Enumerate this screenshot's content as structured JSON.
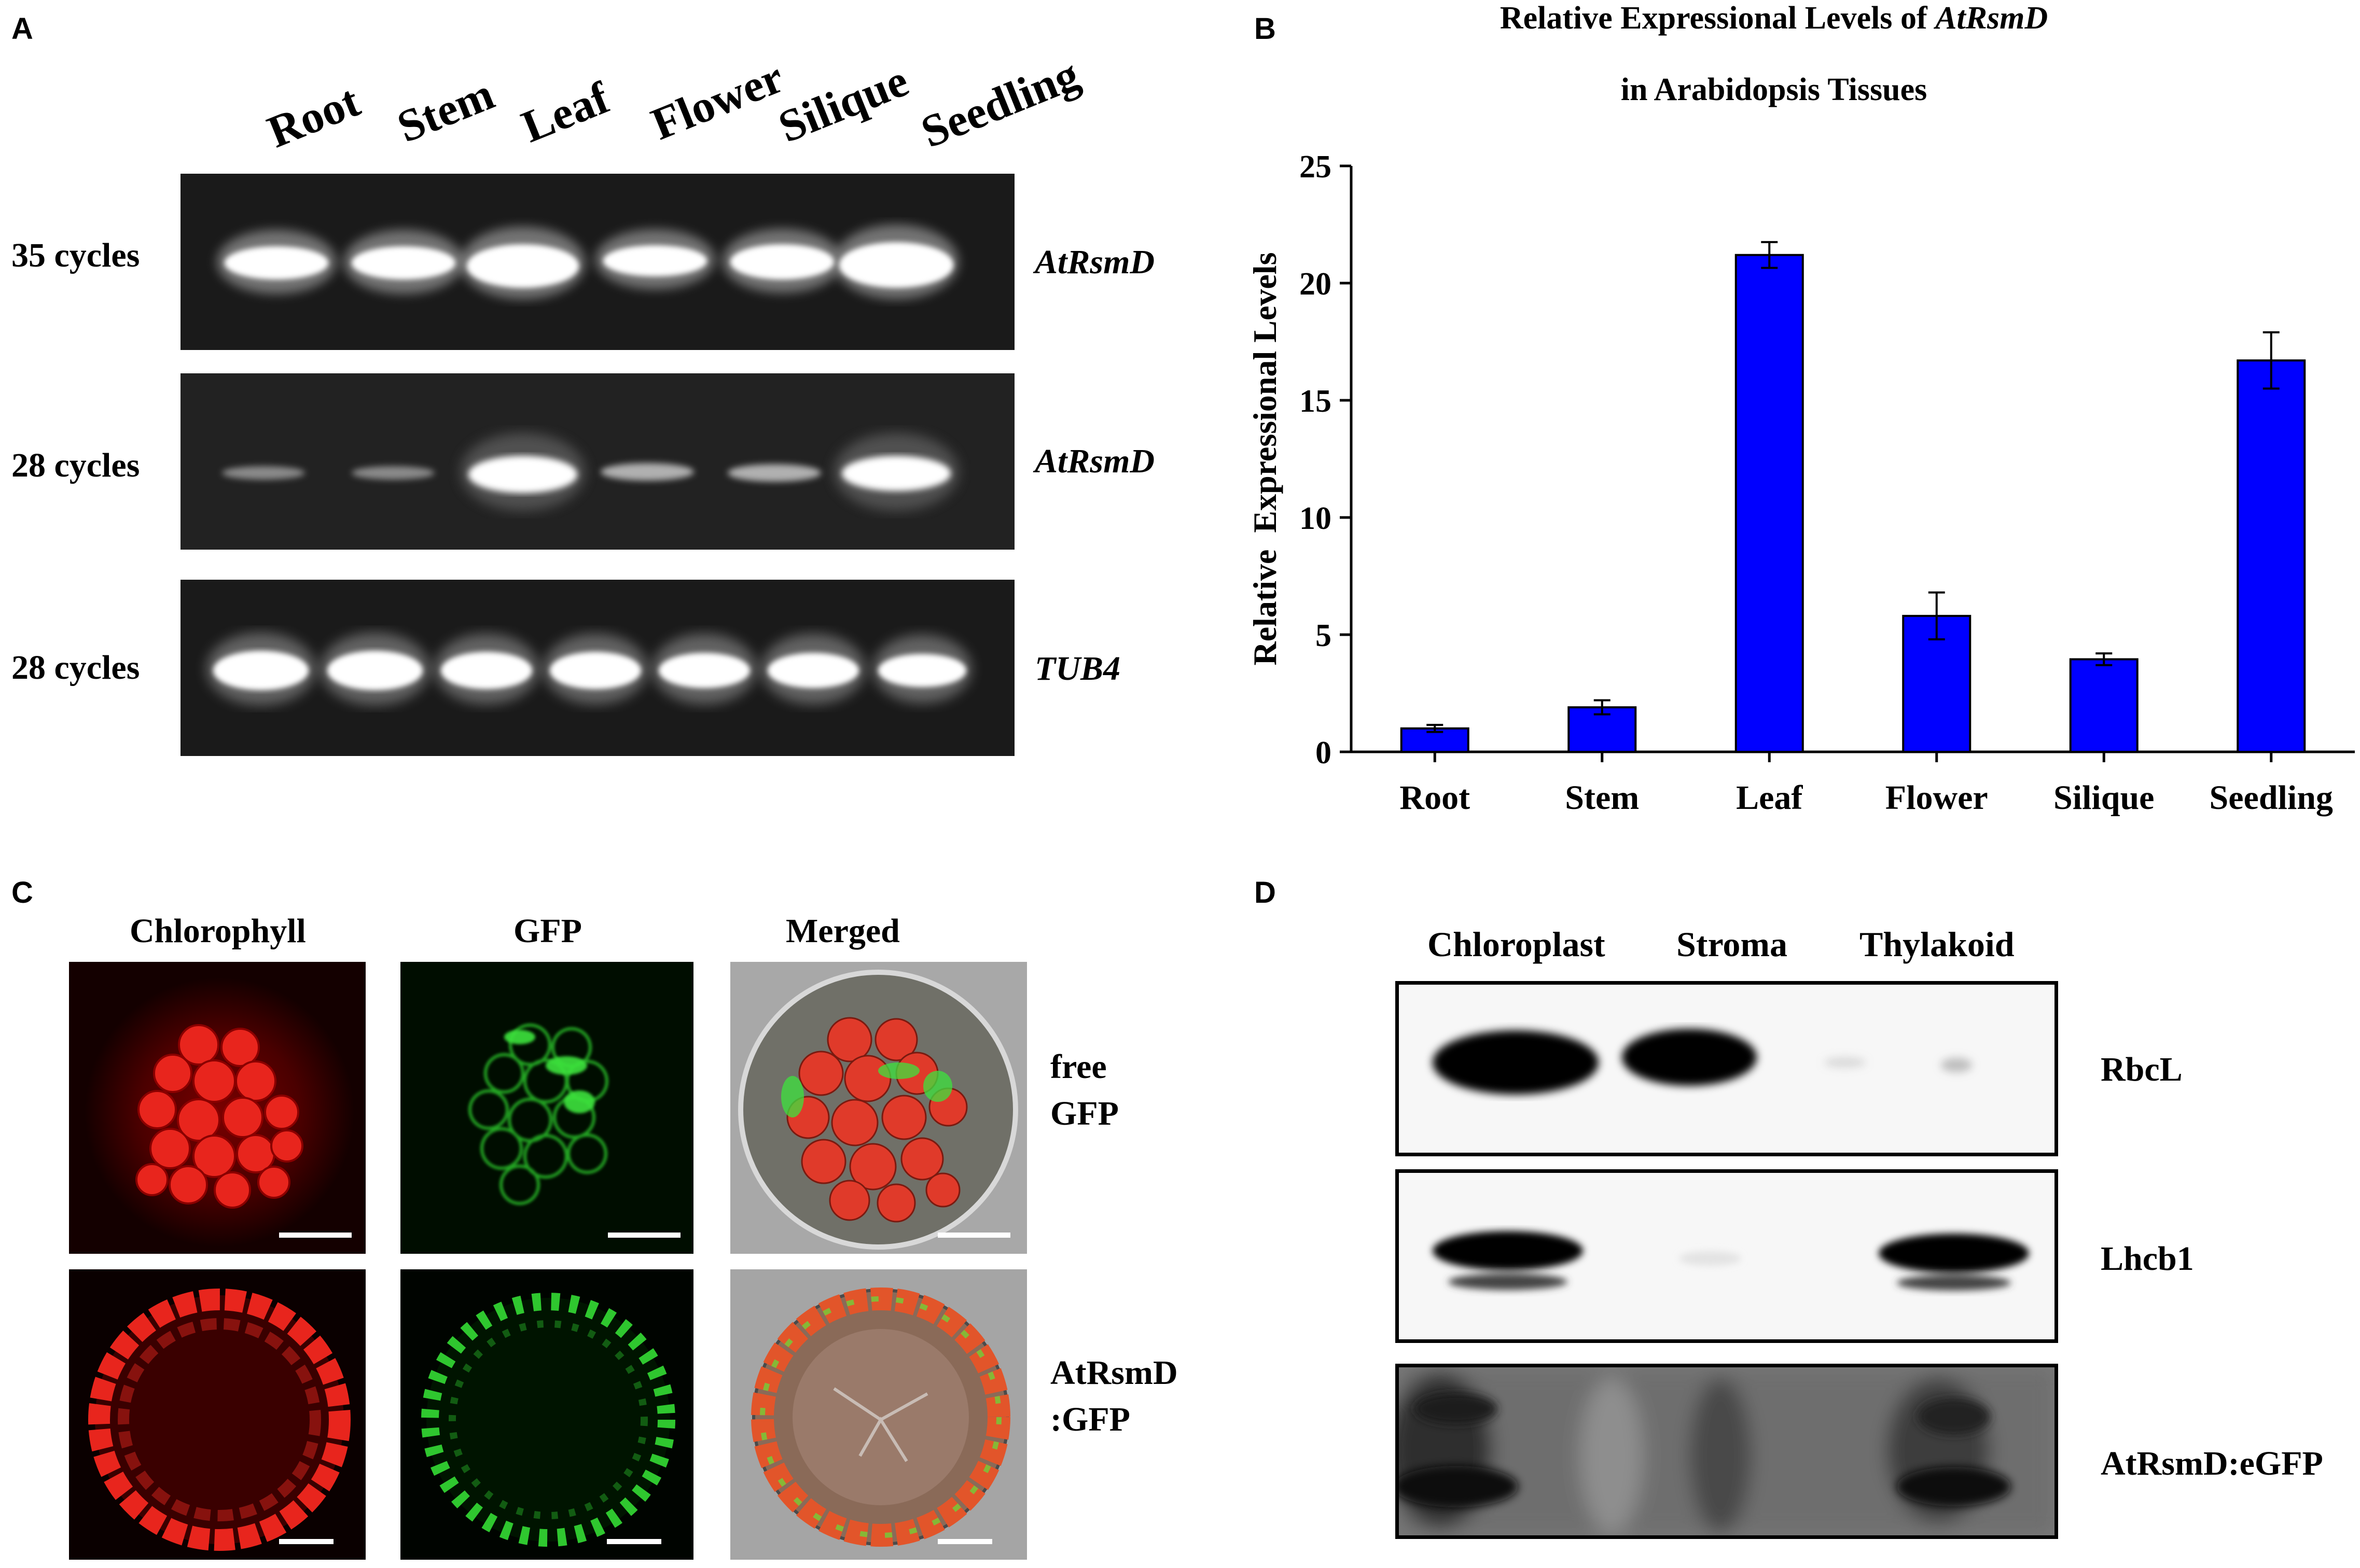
{
  "panel_letters": [
    "A",
    "B",
    "C",
    "D"
  ],
  "panel_a": {
    "lanes": [
      "Root",
      "Stem",
      "Leaf",
      "Flower",
      "Silique",
      "Seedling"
    ],
    "rows": [
      {
        "cycles": "35 cycles",
        "gene": "AtRsmD"
      },
      {
        "cycles": "28 cycles",
        "gene": "AtRsmD"
      },
      {
        "cycles": "28 cycles",
        "gene": "TUB4"
      }
    ]
  },
  "panel_b": {
    "title_prefix": "Relative Expressional Levels of ",
    "title_gene": "AtRsmD",
    "title_line2": "in Arabidopsis Tissues"
  },
  "chart_data": {
    "type": "bar",
    "title": "Relative Expressional Levels of AtRsmD in Arabidopsis Tissues",
    "xlabel": "",
    "ylabel": "Relative  Expressional Levels",
    "categories": [
      "Root",
      "Stem",
      "Leaf",
      "Flower",
      "Silique",
      "Seedling"
    ],
    "values": [
      1.0,
      1.9,
      21.2,
      5.8,
      3.95,
      16.7
    ],
    "errors": [
      0.15,
      0.3,
      0.55,
      1.0,
      0.25,
      1.2
    ],
    "ylim": [
      0,
      25
    ],
    "yticks": [
      "0",
      "5",
      "10",
      "15",
      "20",
      "25"
    ],
    "bar_color": "#0000ff",
    "grid": false,
    "legend": "none"
  },
  "panel_c": {
    "columns": [
      "Chlorophyll",
      "GFP",
      "Merged"
    ],
    "rows": [
      {
        "label_line1": "free",
        "label_line2": "GFP"
      },
      {
        "label_line1": "AtRsmD",
        "label_line2": ":GFP"
      }
    ]
  },
  "panel_d": {
    "fractions": [
      "Chloroplast",
      "Stroma",
      "Thylakoid"
    ],
    "blots": [
      "RbcL",
      "Lhcb1",
      "AtRsmD:eGFP"
    ]
  }
}
